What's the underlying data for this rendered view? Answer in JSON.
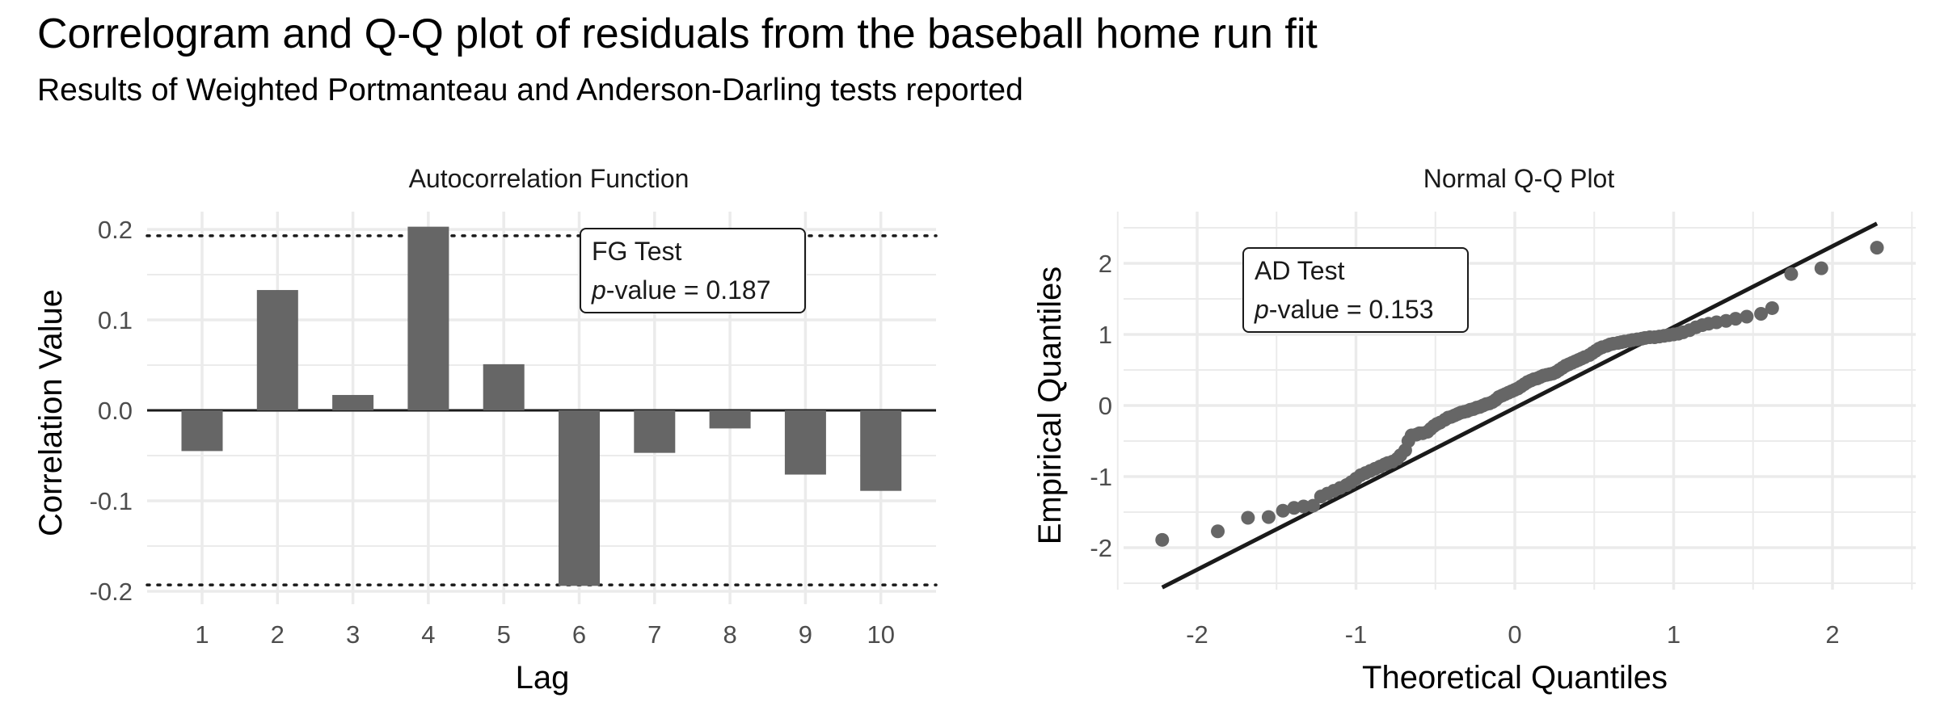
{
  "title": "Correlogram and Q-Q plot of residuals from the baseball home run fit",
  "subtitle": "Results of Weighted Portmanteau and Anderson-Darling tests reported",
  "chart_data": [
    {
      "type": "bar",
      "title": "Autocorrelation Function",
      "xlabel": "Lag",
      "ylabel": "Correlation Value",
      "categories": [
        "1",
        "2",
        "3",
        "4",
        "5",
        "6",
        "7",
        "8",
        "9",
        "10"
      ],
      "values": [
        -0.045,
        0.133,
        0.017,
        0.203,
        0.051,
        -0.194,
        -0.047,
        -0.02,
        -0.071,
        -0.089
      ],
      "ylim": [
        -0.2,
        0.2
      ],
      "y_ticks": [
        -0.2,
        -0.1,
        0.0,
        0.1,
        0.2
      ],
      "y_tick_labels": [
        "-0.2",
        "-0.1",
        "0.0",
        "0.1",
        "0.2"
      ],
      "confidence_bounds": [
        -0.193,
        0.193
      ],
      "grid": true,
      "annotation": {
        "test": "FG Test",
        "p_italic": "p",
        "p_rest": "-value = 0.187"
      }
    },
    {
      "type": "scatter",
      "title": "Normal Q-Q Plot",
      "xlabel": "Theoretical Quantiles",
      "ylabel": "Empirical Quantiles",
      "x_ticks": [
        -2,
        -1,
        0,
        1,
        2
      ],
      "x_tick_labels": [
        "-2",
        "-1",
        "0",
        "1",
        "2"
      ],
      "y_ticks": [
        -2,
        -1,
        0,
        1,
        2
      ],
      "y_tick_labels": [
        "-2",
        "-1",
        "0",
        "1",
        "2"
      ],
      "reference_line": {
        "x": [
          -2.22,
          2.28
        ],
        "y": [
          -2.56,
          2.56
        ]
      },
      "points": {
        "x": [
          -2.22,
          -1.87,
          -1.68,
          -1.55,
          -1.46,
          -1.39,
          -1.33,
          -1.27,
          -1.22,
          -1.18,
          -1.14,
          -1.1,
          -1.06,
          -1.03,
          -1.0,
          -0.97,
          -0.94,
          -0.91,
          -0.88,
          -0.85,
          -0.82,
          -0.8,
          -0.77,
          -0.74,
          -0.72,
          -0.69,
          -0.67,
          -0.65,
          -0.62,
          -0.6,
          -0.58,
          -0.55,
          -0.53,
          -0.51,
          -0.49,
          -0.47,
          -0.44,
          -0.42,
          -0.4,
          -0.38,
          -0.36,
          -0.34,
          -0.32,
          -0.3,
          -0.28,
          -0.26,
          -0.24,
          -0.22,
          -0.2,
          -0.18,
          -0.16,
          -0.14,
          -0.12,
          -0.1,
          -0.08,
          -0.06,
          -0.04,
          -0.02,
          0.0,
          0.02,
          0.04,
          0.06,
          0.08,
          0.1,
          0.12,
          0.14,
          0.16,
          0.18,
          0.2,
          0.22,
          0.24,
          0.26,
          0.28,
          0.3,
          0.32,
          0.34,
          0.36,
          0.38,
          0.4,
          0.42,
          0.44,
          0.47,
          0.49,
          0.51,
          0.53,
          0.55,
          0.58,
          0.6,
          0.62,
          0.65,
          0.67,
          0.69,
          0.72,
          0.74,
          0.77,
          0.8,
          0.82,
          0.85,
          0.88,
          0.91,
          0.94,
          0.97,
          1.0,
          1.03,
          1.06,
          1.1,
          1.14,
          1.18,
          1.22,
          1.27,
          1.33,
          1.39,
          1.46,
          1.55,
          1.62,
          1.74,
          1.93,
          2.28
        ],
        "y": [
          -1.89,
          -1.77,
          -1.58,
          -1.57,
          -1.48,
          -1.44,
          -1.42,
          -1.41,
          -1.28,
          -1.24,
          -1.2,
          -1.16,
          -1.12,
          -1.08,
          -1.03,
          -0.98,
          -0.95,
          -0.92,
          -0.89,
          -0.86,
          -0.83,
          -0.81,
          -0.79,
          -0.75,
          -0.7,
          -0.63,
          -0.5,
          -0.42,
          -0.41,
          -0.39,
          -0.39,
          -0.37,
          -0.33,
          -0.29,
          -0.26,
          -0.24,
          -0.2,
          -0.17,
          -0.16,
          -0.14,
          -0.12,
          -0.1,
          -0.09,
          -0.08,
          -0.06,
          -0.05,
          -0.03,
          -0.02,
          0.0,
          0.02,
          0.03,
          0.05,
          0.08,
          0.12,
          0.14,
          0.16,
          0.18,
          0.2,
          0.22,
          0.24,
          0.27,
          0.3,
          0.33,
          0.35,
          0.37,
          0.38,
          0.4,
          0.42,
          0.43,
          0.44,
          0.45,
          0.47,
          0.5,
          0.53,
          0.56,
          0.58,
          0.6,
          0.62,
          0.64,
          0.66,
          0.68,
          0.71,
          0.74,
          0.77,
          0.8,
          0.82,
          0.84,
          0.86,
          0.87,
          0.88,
          0.89,
          0.9,
          0.91,
          0.92,
          0.93,
          0.94,
          0.95,
          0.96,
          0.96,
          0.97,
          0.98,
          0.99,
          1.0,
          1.01,
          1.03,
          1.06,
          1.1,
          1.13,
          1.15,
          1.17,
          1.19,
          1.22,
          1.25,
          1.29,
          1.37,
          1.85,
          1.93,
          2.22
        ]
      },
      "grid": true,
      "annotation": {
        "test": "AD Test",
        "p_italic": "p",
        "p_rest": "-value = 0.153"
      }
    }
  ]
}
